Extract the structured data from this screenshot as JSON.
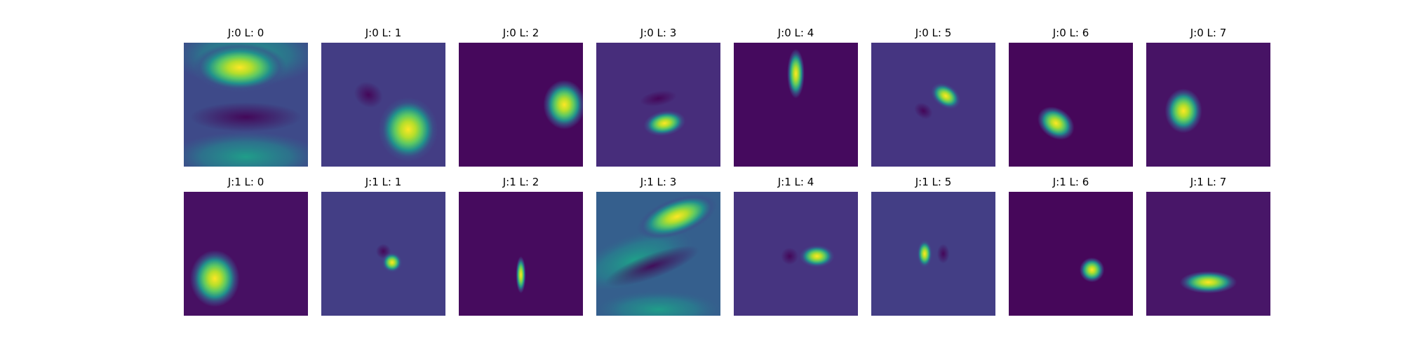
{
  "panels": [
    {
      "title": "J:0 L: 0"
    },
    {
      "title": "J:0 L: 1"
    },
    {
      "title": "J:0 L: 2"
    },
    {
      "title": "J:0 L: 3"
    },
    {
      "title": "J:0 L: 4"
    },
    {
      "title": "J:0 L: 5"
    },
    {
      "title": "J:0 L: 6"
    },
    {
      "title": "J:0 L: 7"
    },
    {
      "title": "J:1 L: 0"
    },
    {
      "title": "J:1 L: 1"
    },
    {
      "title": "J:1 L: 2"
    },
    {
      "title": "J:1 L: 3"
    },
    {
      "title": "J:1 L: 4"
    },
    {
      "title": "J:1 L: 5"
    },
    {
      "title": "J:1 L: 6"
    },
    {
      "title": "J:1 L: 7"
    }
  ]
}
